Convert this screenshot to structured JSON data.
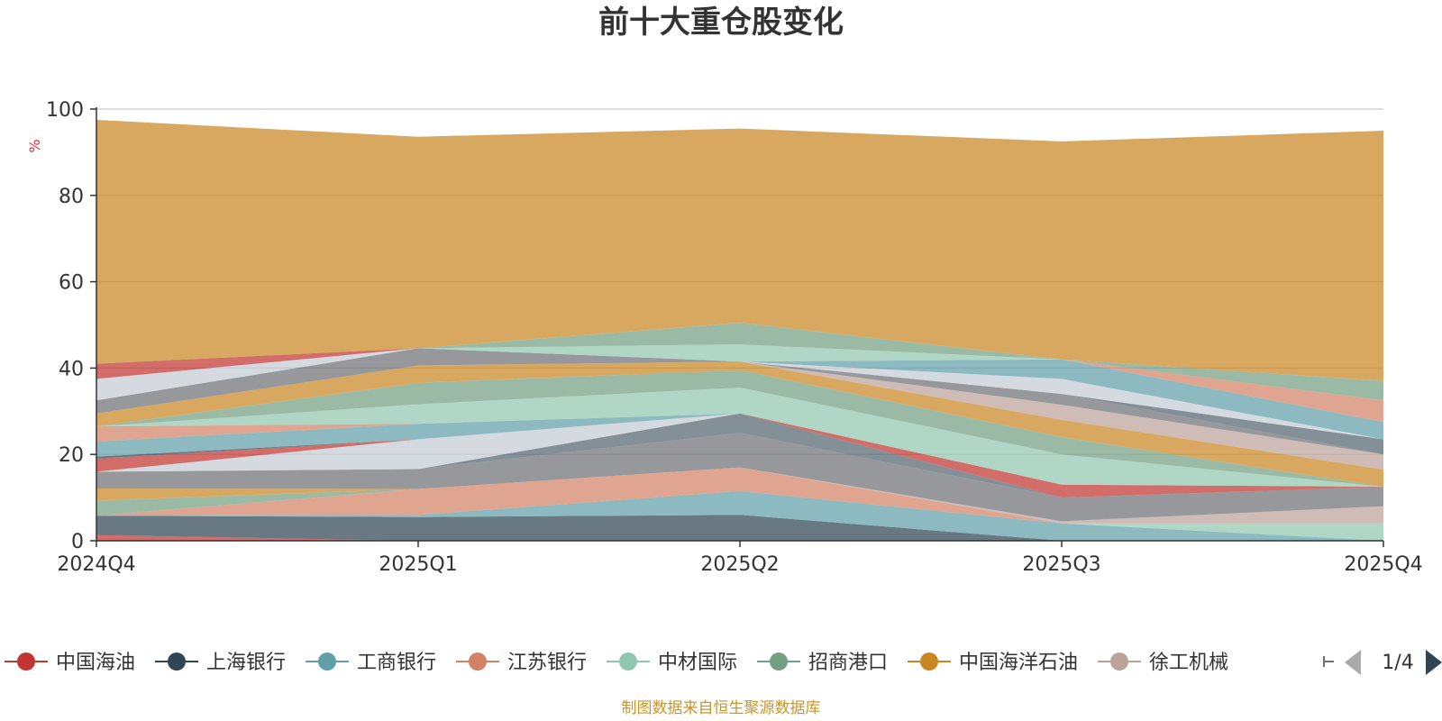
{
  "chart_data": {
    "type": "area",
    "stacked": true,
    "title": "前十大重仓股变化",
    "ylabel": "%",
    "categories": [
      "2024Q4",
      "2025Q1",
      "2025Q2",
      "2025Q3",
      "2025Q4"
    ],
    "ylim": [
      0,
      100
    ],
    "yticks": [
      0,
      20,
      40,
      60,
      80,
      100
    ],
    "grid": true,
    "series": [
      {
        "name": "中国海油",
        "color": "#c23531",
        "values": [
          1.3,
          0,
          0,
          0,
          0
        ]
      },
      {
        "name": "上海银行",
        "color": "#2f4554",
        "values": [
          4.5,
          5.5,
          6.0,
          0,
          0
        ]
      },
      {
        "name": "工商银行",
        "color": "#61a0a8",
        "values": [
          0,
          0.5,
          5.5,
          4.0,
          0
        ]
      },
      {
        "name": "江苏银行",
        "color": "#d48265",
        "values": [
          0,
          6.0,
          5.5,
          0,
          0
        ]
      },
      {
        "name": "中材国际",
        "color": "#91c7ae",
        "values": [
          0,
          0,
          0,
          0,
          4.0
        ]
      },
      {
        "name": "招商港口",
        "color": "#749f83",
        "values": [
          3.5,
          0,
          0,
          0,
          0
        ]
      },
      {
        "name": "中国海洋石油",
        "color": "#ca8622",
        "values": [
          2.8,
          0,
          0,
          0,
          0
        ]
      },
      {
        "name": "徐工机械",
        "color": "#bda29a",
        "values": [
          0,
          0,
          0,
          0.5,
          4.0
        ]
      },
      {
        "name": "",
        "color": "#6e7074",
        "values": [
          3.9,
          4.6,
          8.0,
          5.5,
          4.5
        ]
      },
      {
        "name": "",
        "color": "#546570",
        "values": [
          0,
          0,
          4.5,
          0,
          0
        ]
      },
      {
        "name": "",
        "color": "#c4ccd3",
        "values": [
          0,
          6.9,
          0,
          0,
          0
        ]
      },
      {
        "name": "",
        "color": "#c23531",
        "values": [
          3.0,
          0,
          0,
          3.0,
          0
        ]
      },
      {
        "name": "",
        "color": "#2f4554",
        "values": [
          0.5,
          0,
          0,
          0,
          0
        ]
      },
      {
        "name": "",
        "color": "#61a0a8",
        "values": [
          3.5,
          3.6,
          0,
          0,
          0
        ]
      },
      {
        "name": "",
        "color": "#d48265",
        "values": [
          3.5,
          0,
          0,
          0,
          0
        ]
      },
      {
        "name": "",
        "color": "#91c7ae",
        "values": [
          0,
          4.5,
          6.0,
          7.0,
          0
        ]
      },
      {
        "name": "",
        "color": "#749f83",
        "values": [
          0,
          5.0,
          4.0,
          4.0,
          0
        ]
      },
      {
        "name": "",
        "color": "#ca8622",
        "values": [
          3.0,
          4.0,
          2.0,
          4.0,
          4.0
        ]
      },
      {
        "name": "",
        "color": "#bda29a",
        "values": [
          0,
          0,
          0,
          3.5,
          3.5
        ]
      },
      {
        "name": "",
        "color": "#6e7074",
        "values": [
          3.0,
          4.0,
          0,
          2.5,
          0
        ]
      },
      {
        "name": "",
        "color": "#546570",
        "values": [
          0,
          0,
          0,
          0,
          3.5
        ]
      },
      {
        "name": "",
        "color": "#c4ccd3",
        "values": [
          5.0,
          0,
          0,
          3.5,
          0
        ]
      },
      {
        "name": "",
        "color": "#c23531",
        "values": [
          3.5,
          0,
          0,
          0,
          0
        ]
      },
      {
        "name": "",
        "color": "#61a0a8",
        "values": [
          0,
          0,
          0,
          4.5,
          4.0
        ]
      },
      {
        "name": "",
        "color": "#d48265",
        "values": [
          0,
          0,
          0,
          0,
          5.0
        ]
      },
      {
        "name": "",
        "color": "#91c7ae",
        "values": [
          0,
          0,
          4.0,
          0,
          0
        ]
      },
      {
        "name": "",
        "color": "#749f83",
        "values": [
          0,
          0,
          5.0,
          0,
          4.5
        ]
      },
      {
        "name": "",
        "color": "#ca8622",
        "values": [
          56.5,
          49.0,
          45.0,
          50.5,
          58.0
        ]
      }
    ],
    "legend": {
      "position": "bottom",
      "page": "1/4"
    },
    "source_note": "制图数据来自恒生聚源数据库"
  }
}
